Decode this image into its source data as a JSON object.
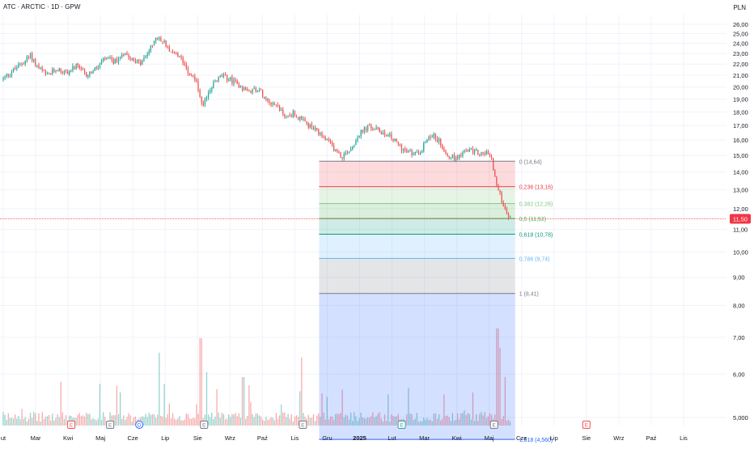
{
  "header": {
    "symbol_title": "ATC · ARCTIC · 1D · GPW",
    "currency": "PLN"
  },
  "colors": {
    "up": "#26a69a",
    "down": "#ef5350",
    "price_line": "#f23645",
    "axis_text": "#131722",
    "grid": "#f0f3fa"
  },
  "chart_data": {
    "type": "candlestick",
    "y_axis": {
      "ticks": [
        "5,000",
        "6,00",
        "7,00",
        "8,00",
        "9,00",
        "10,00",
        "11,00",
        "12,00",
        "13,00",
        "14,00",
        "15,00",
        "16,00",
        "17,00",
        "18,00",
        "19,00",
        "20,00",
        "21,00",
        "22,00",
        "23,00",
        "24,00",
        "25,00",
        "26,00"
      ],
      "tick_values": [
        5,
        6,
        7,
        8,
        9,
        10,
        11,
        12,
        13,
        14,
        15,
        16,
        17,
        18,
        19,
        20,
        21,
        22,
        23,
        24,
        25,
        26
      ],
      "log_scale": true,
      "range": [
        4.6,
        26.6
      ]
    },
    "x_axis": {
      "labels": [
        "ut",
        "Mar",
        "Kwi",
        "Maj",
        "Cze",
        "Lip",
        "Sie",
        "Wrz",
        "Paź",
        "Lis",
        "Gru",
        "2025",
        "Lut",
        "Mar",
        "Kwi",
        "Maj",
        "Cze",
        "Lip",
        "Sie",
        "Wrz",
        "Paź",
        "Lis"
      ],
      "bold_label": "2025",
      "month_index_range": [
        0,
        21.8
      ]
    },
    "last_price": {
      "value": 11.5,
      "label": "11,50"
    },
    "price_keypoints": [
      [
        0.0,
        20.6
      ],
      [
        0.3,
        21.3
      ],
      [
        0.6,
        22.0
      ],
      [
        0.9,
        22.8
      ],
      [
        1.1,
        21.8
      ],
      [
        1.4,
        20.9
      ],
      [
        1.7,
        21.6
      ],
      [
        2.0,
        21.2
      ],
      [
        2.3,
        21.8
      ],
      [
        2.6,
        21.0
      ],
      [
        2.9,
        21.5
      ],
      [
        3.2,
        22.5
      ],
      [
        3.5,
        22.2
      ],
      [
        3.8,
        23.2
      ],
      [
        4.0,
        22.6
      ],
      [
        4.3,
        22.0
      ],
      [
        4.6,
        23.5
      ],
      [
        4.8,
        24.5
      ],
      [
        5.0,
        24.2
      ],
      [
        5.3,
        23.0
      ],
      [
        5.6,
        22.3
      ],
      [
        5.8,
        21.2
      ],
      [
        6.0,
        20.6
      ],
      [
        6.2,
        18.2
      ],
      [
        6.4,
        19.7
      ],
      [
        6.6,
        20.5
      ],
      [
        6.8,
        20.9
      ],
      [
        7.0,
        20.7
      ],
      [
        7.3,
        20.2
      ],
      [
        7.6,
        19.6
      ],
      [
        7.9,
        19.9
      ],
      [
        8.2,
        19.0
      ],
      [
        8.5,
        18.5
      ],
      [
        8.8,
        17.6
      ],
      [
        9.0,
        17.9
      ],
      [
        9.3,
        17.3
      ],
      [
        9.6,
        16.8
      ],
      [
        9.9,
        16.2
      ],
      [
        10.2,
        15.6
      ],
      [
        10.5,
        14.9
      ],
      [
        10.8,
        15.5
      ],
      [
        11.0,
        16.3
      ],
      [
        11.3,
        16.9
      ],
      [
        11.6,
        16.7
      ],
      [
        11.9,
        16.4
      ],
      [
        12.2,
        15.8
      ],
      [
        12.5,
        15.2
      ],
      [
        12.8,
        15.1
      ],
      [
        13.0,
        15.5
      ],
      [
        13.2,
        16.4
      ],
      [
        13.4,
        16.2
      ],
      [
        13.6,
        15.6
      ],
      [
        13.8,
        15.0
      ],
      [
        14.0,
        14.8
      ],
      [
        14.2,
        15.2
      ],
      [
        14.5,
        15.3
      ],
      [
        14.8,
        15.1
      ],
      [
        15.0,
        15.2
      ],
      [
        15.15,
        14.6
      ],
      [
        15.25,
        13.4
      ],
      [
        15.4,
        12.6
      ],
      [
        15.55,
        12.0
      ],
      [
        15.7,
        11.5
      ]
    ],
    "candle_count": 300,
    "volume": {
      "range": [
        0,
        1
      ],
      "spikes": [
        [
          1.8,
          0.45
        ],
        [
          4.8,
          0.75
        ],
        [
          6.1,
          0.9
        ],
        [
          6.3,
          0.55
        ],
        [
          7.4,
          0.5
        ],
        [
          9.2,
          0.7
        ],
        [
          13.6,
          0.32
        ],
        [
          15.25,
          1.0
        ],
        [
          15.35,
          0.8
        ],
        [
          15.5,
          0.5
        ]
      ]
    },
    "event_markers": [
      {
        "month_index": 2.1,
        "label": "E",
        "color": "#ef5350"
      },
      {
        "month_index": 3.3,
        "label": "E",
        "color": "#787b86"
      },
      {
        "month_index": 4.2,
        "label": "D",
        "color": "#2962ff"
      },
      {
        "month_index": 6.2,
        "label": "E",
        "color": "#787b86"
      },
      {
        "month_index": 9.25,
        "label": "E",
        "color": "#787b86"
      },
      {
        "month_index": 12.3,
        "label": "E",
        "color": "#26a69a"
      },
      {
        "month_index": 15.15,
        "label": "E",
        "color": "#787b86"
      },
      {
        "month_index": 18.0,
        "label": "E",
        "color": "#ef5350"
      }
    ],
    "fibonacci": {
      "start_month_index": 9.75,
      "end_month_index": 15.8,
      "levels": [
        {
          "ratio": 0,
          "price": 14.64,
          "label": "0 (14,64)",
          "line_color": "#787b86",
          "fill": null
        },
        {
          "ratio": 0.236,
          "price": 13.16,
          "label": "0,236 (13,16)",
          "line_color": "#f23645",
          "fill": "rgba(242,54,69,0.18)"
        },
        {
          "ratio": 0.382,
          "price": 12.26,
          "label": "0,382 (12,26)",
          "line_color": "#81c784",
          "fill": "rgba(129,199,132,0.2)"
        },
        {
          "ratio": 0.5,
          "price": 11.52,
          "label": "0,5 (11,52)",
          "line_color": "#4caf50",
          "fill": "rgba(76,175,80,0.2)"
        },
        {
          "ratio": 0.618,
          "price": 10.78,
          "label": "0,618 (10,78)",
          "line_color": "#089981",
          "fill": "rgba(8,153,129,0.2)"
        },
        {
          "ratio": 0.786,
          "price": 9.74,
          "label": "0,786 (9,74)",
          "line_color": "#64b5f6",
          "fill": "rgba(100,181,246,0.2)"
        },
        {
          "ratio": 1,
          "price": 8.41,
          "label": "1 (8,41)",
          "line_color": "#787b86",
          "fill": "rgba(120,123,134,0.2)"
        },
        {
          "ratio": 1.618,
          "price": 4.56,
          "label": "1,618 (4,560)",
          "line_color": "#2962ff",
          "fill": "rgba(41,98,255,0.2)"
        }
      ]
    }
  }
}
